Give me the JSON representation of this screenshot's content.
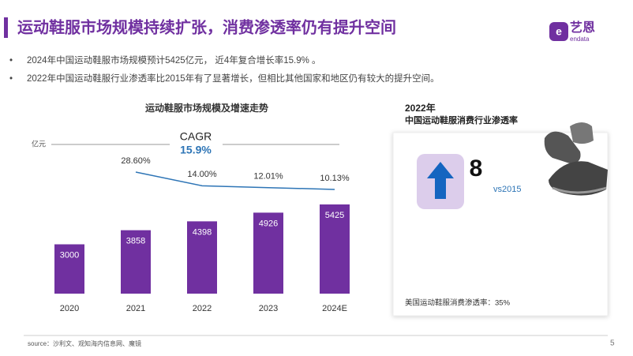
{
  "header": {
    "title": "运动鞋服市场规模持续扩张，消费渗透率仍有提升空间",
    "logo": "艺恩",
    "logo_sub": "endata"
  },
  "bullets": [
    "2024年中国运动鞋服市场规模预计5425亿元， 近4年复合增长率15.9% 。",
    "2022年中国运动鞋服行业渗透率比2015年有了显著增长，但相比其他国家和地区仍有较大的提升空间。"
  ],
  "chart_data": {
    "type": "bar",
    "title": "运动鞋服市场规模及增速走势",
    "unit": "亿元",
    "cagr": {
      "label": "CAGR",
      "value": "15.9%"
    },
    "categories": [
      "2020",
      "2021",
      "2022",
      "2023",
      "2024E"
    ],
    "series": [
      {
        "type": "bar",
        "color": "#7030a0",
        "values": [
          3000,
          3858,
          4398,
          4926,
          5425
        ]
      },
      {
        "type": "line",
        "color": "#2e75b6",
        "values": [
          null,
          28.6,
          14.0,
          12.01,
          10.13
        ],
        "value_labels": [
          null,
          "28.60%",
          "14.00%",
          "12.01%",
          "10.13%"
        ]
      }
    ]
  },
  "panel": {
    "year": "2022年",
    "title": "中国运动鞋服消费行业渗透率",
    "value": "8",
    "compare": "vs2015",
    "note": "美国运动鞋服消费渗透率：35%"
  },
  "footer": {
    "source": "source：沙利文、观知海内信息网、魔镜",
    "page": "5"
  }
}
